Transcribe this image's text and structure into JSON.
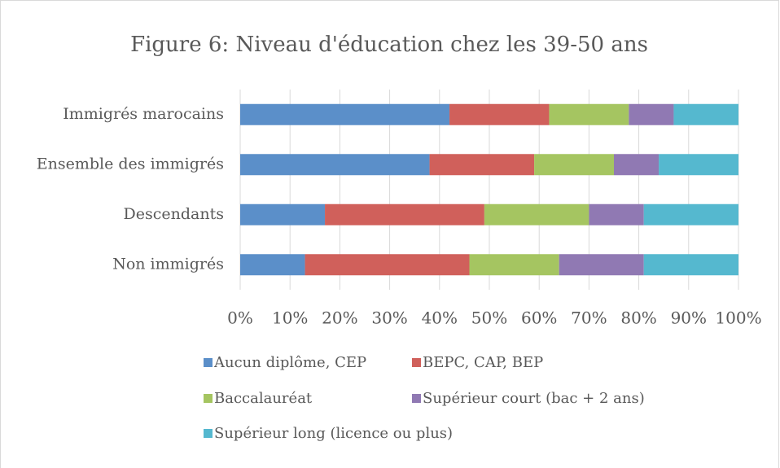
{
  "chart_data": {
    "type": "stacked_barh",
    "title": "Figure 6: Niveau d'éducation chez les 39-50 ans",
    "categories": [
      "Immigrés marocains",
      "Ensemble des immigrés",
      "Descendants",
      "Non immigrés"
    ],
    "series": [
      {
        "name": "Aucun diplôme, CEP",
        "color": "#5b8fc9",
        "values": [
          42,
          38,
          17,
          13
        ]
      },
      {
        "name": "BEPC, CAP, BEP",
        "color": "#d0605b",
        "values": [
          20,
          21,
          32,
          33
        ]
      },
      {
        "name": "Baccalauréat",
        "color": "#a5c561",
        "values": [
          16,
          16,
          21,
          18
        ]
      },
      {
        "name": "Supérieur court (bac + 2 ans)",
        "color": "#9079b3",
        "values": [
          9,
          9,
          11,
          17
        ]
      },
      {
        "name": "Supérieur long (licence ou plus)",
        "color": "#55b8cf",
        "values": [
          13,
          16,
          19,
          19
        ]
      }
    ],
    "xlim": [
      0,
      100
    ],
    "xticks": [
      {
        "value": 0,
        "label": "0%"
      },
      {
        "value": 10,
        "label": "10%"
      },
      {
        "value": 20,
        "label": "20%"
      },
      {
        "value": 30,
        "label": "30%"
      },
      {
        "value": 40,
        "label": "40%"
      },
      {
        "value": 50,
        "label": "50%"
      },
      {
        "value": 60,
        "label": "60%"
      },
      {
        "value": 70,
        "label": "70%"
      },
      {
        "value": 80,
        "label": "80%"
      },
      {
        "value": 90,
        "label": "90%"
      },
      {
        "value": 100,
        "label": "100%"
      }
    ],
    "grid": true
  }
}
